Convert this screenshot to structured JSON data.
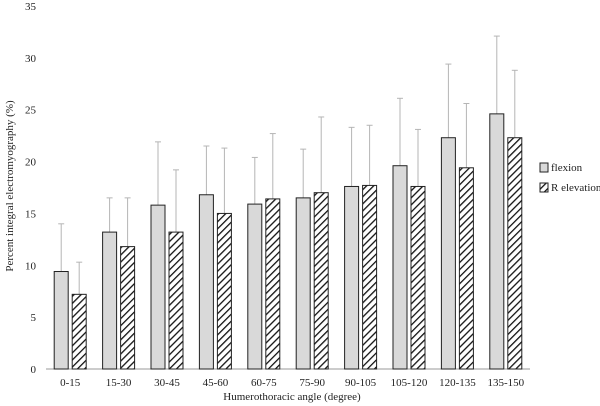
{
  "chart_data": {
    "type": "bar",
    "categories": [
      "0-15",
      "15-30",
      "30-45",
      "45-60",
      "60-75",
      "75-90",
      "90-105",
      "105-120",
      "120-135",
      "135-150"
    ],
    "series": [
      {
        "name": "flexion",
        "values": [
          9.4,
          13.2,
          15.8,
          16.8,
          15.9,
          16.5,
          17.6,
          19.6,
          22.3,
          24.6
        ],
        "error_upper": [
          14.0,
          16.5,
          21.9,
          21.5,
          20.4,
          21.2,
          23.3,
          26.1,
          29.4,
          32.1
        ],
        "color": "#d9d9d9",
        "pattern": "solid"
      },
      {
        "name": "R elevation",
        "values": [
          7.2,
          11.8,
          13.2,
          15.0,
          16.4,
          17.0,
          17.7,
          17.6,
          19.4,
          22.3
        ],
        "error_upper": [
          10.3,
          16.5,
          19.2,
          21.3,
          22.7,
          24.3,
          23.5,
          23.1,
          25.6,
          28.8
        ],
        "color": "#ffffff",
        "pattern": "hatched"
      }
    ],
    "xlabel": "Humerothoracic angle (degree)",
    "ylabel": "Percent integral electromyography (%)",
    "yticks": [
      "0",
      "5",
      "10",
      "15",
      "20",
      "25",
      "30",
      "35"
    ],
    "ylim": [
      0,
      35
    ],
    "grid": false,
    "legend_position": "right"
  }
}
